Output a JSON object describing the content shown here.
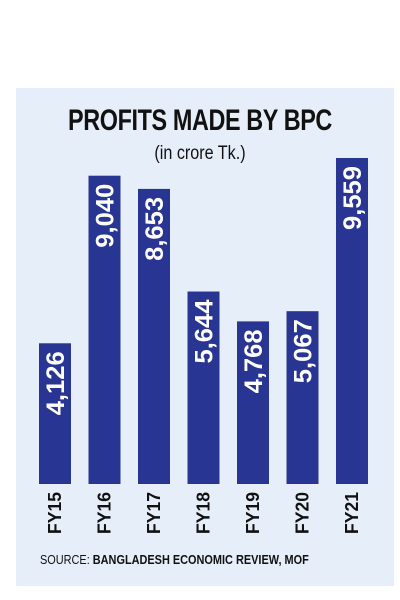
{
  "chart_data": {
    "type": "bar",
    "title": "PROFITS MADE BY BPC",
    "subtitle": "(in crore Tk.)",
    "categories": [
      "FY15",
      "FY16",
      "FY17",
      "FY18",
      "FY19",
      "FY20",
      "FY21"
    ],
    "values": [
      4126,
      9040,
      8653,
      5644,
      4768,
      5067,
      9559
    ],
    "value_labels": [
      "4,126",
      "9,040",
      "8,653",
      "5,644",
      "4,768",
      "5,067",
      "9,559"
    ],
    "bar_color": "#283593",
    "label_color": "#ffffff",
    "grid": false,
    "legend": "none"
  },
  "source": {
    "prefix": "SOURCE: ",
    "text": "BANGLADESH ECONOMIC REVIEW, MOF"
  }
}
